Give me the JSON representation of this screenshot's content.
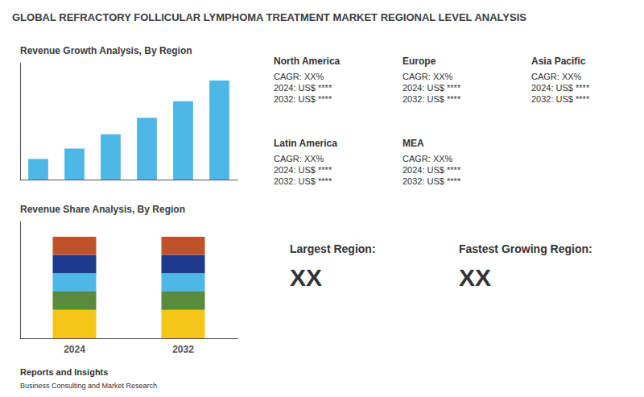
{
  "title": "GLOBAL REFRACTORY FOLLICULAR LYMPHOMA TREATMENT MARKET REGIONAL LEVEL ANALYSIS",
  "annotations": [
    "North America",
    "CAGR: XX%\n2024: US$ ****\n2032: US$ ****",
    "Europe",
    "CAGR: XX%\n2024: US$ ****\n2032: US$ ****",
    "Asia Pacific",
    "CAGR: XX%\n2024: US$ ****\n2032: US$ ****",
    "Latin America",
    "CAGR: XX%\n2024: US$ ****\n2032: US$ ****",
    "MEA",
    "CAGR: XX%\n2024: US$ ****\n2032: US$ ****",
    "Largest Region:",
    "XX",
    "Fastest Growing Region:",
    "XX",
    "Reports and Insights",
    "Business Consulting and Market Research"
  ],
  "chart_data": [
    {
      "type": "bar",
      "title": "Revenue Growth Analysis, By Region",
      "categories": [
        null,
        null,
        null,
        null,
        null,
        null
      ],
      "values": [
        1.0,
        1.5,
        2.2,
        3.0,
        3.8,
        4.8
      ],
      "color": "#4db8e8",
      "ylim": [
        0,
        5.664
      ],
      "grid": false,
      "tick_labels": false
    },
    {
      "type": "bar",
      "stacked": true,
      "title": "Revenue Share Analysis, By Region",
      "categories": [
        "2024",
        "2032"
      ],
      "series": [
        {
          "color": "#f5c518",
          "values": [
            0.28,
            0.28
          ]
        },
        {
          "color": "#5a8a3c",
          "values": [
            0.18,
            0.18
          ]
        },
        {
          "color": "#4db8e8",
          "values": [
            0.18,
            0.18
          ]
        },
        {
          "color": "#1e3a8c",
          "values": [
            0.18,
            0.18
          ]
        },
        {
          "color": "#c0522a",
          "values": [
            0.18,
            0.18
          ]
        }
      ],
      "ylim": [
        0,
        1.15
      ],
      "grid": false,
      "tick_labels": "x"
    }
  ]
}
